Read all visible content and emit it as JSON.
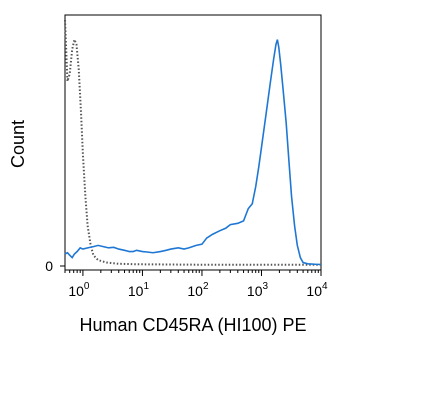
{
  "chart_data": {
    "type": "line",
    "xlabel": "Human CD45RA (HI100) PE",
    "ylabel": "Count",
    "x_scale": "log",
    "xlim": [
      0.5,
      10000
    ],
    "ylim": [
      0,
      100
    ],
    "x_ticks": [
      {
        "base": "10",
        "exp": "0",
        "value": 1
      },
      {
        "base": "10",
        "exp": "1",
        "value": 10
      },
      {
        "base": "10",
        "exp": "2",
        "value": 100
      },
      {
        "base": "10",
        "exp": "3",
        "value": 1000
      },
      {
        "base": "10",
        "exp": "4",
        "value": 10000
      }
    ],
    "y_ticks": [
      {
        "label": "0",
        "value": 0
      }
    ],
    "grid": false,
    "series": [
      {
        "style": "dotted",
        "color": "#555555",
        "points": [
          [
            0.5,
            100
          ],
          [
            0.55,
            75
          ],
          [
            0.6,
            78
          ],
          [
            0.66,
            88
          ],
          [
            0.72,
            92
          ],
          [
            0.78,
            90
          ],
          [
            0.85,
            80
          ],
          [
            0.93,
            62
          ],
          [
            1.0,
            45
          ],
          [
            1.1,
            28
          ],
          [
            1.2,
            16
          ],
          [
            1.35,
            8
          ],
          [
            1.5,
            4
          ],
          [
            1.8,
            2
          ],
          [
            2.5,
            1
          ],
          [
            4,
            0.5
          ],
          [
            8,
            0.3
          ],
          [
            30,
            0.2
          ],
          [
            100,
            0.1
          ],
          [
            10000,
            0.1
          ]
        ]
      },
      {
        "style": "solid",
        "color": "#1f77d4",
        "points": [
          [
            0.5,
            4.5
          ],
          [
            0.55,
            5
          ],
          [
            0.6,
            4
          ],
          [
            0.66,
            3
          ],
          [
            0.72,
            4.5
          ],
          [
            0.8,
            5.5
          ],
          [
            0.9,
            7
          ],
          [
            1.0,
            6.5
          ],
          [
            1.2,
            7
          ],
          [
            1.5,
            7.5
          ],
          [
            1.8,
            8
          ],
          [
            2.2,
            7.5
          ],
          [
            2.7,
            7
          ],
          [
            3.3,
            7.2
          ],
          [
            4,
            6.5
          ],
          [
            5,
            6
          ],
          [
            6,
            5.5
          ],
          [
            7,
            5.5
          ],
          [
            8,
            6
          ],
          [
            10,
            5.5
          ],
          [
            12,
            5.3
          ],
          [
            15,
            5
          ],
          [
            20,
            5.5
          ],
          [
            25,
            6
          ],
          [
            30,
            6.5
          ],
          [
            40,
            7
          ],
          [
            50,
            6.5
          ],
          [
            60,
            7
          ],
          [
            80,
            8
          ],
          [
            100,
            8.5
          ],
          [
            120,
            11
          ],
          [
            150,
            12.5
          ],
          [
            200,
            14
          ],
          [
            250,
            15
          ],
          [
            300,
            16.5
          ],
          [
            400,
            17
          ],
          [
            500,
            18
          ],
          [
            600,
            23
          ],
          [
            700,
            25
          ],
          [
            800,
            32
          ],
          [
            900,
            40
          ],
          [
            1000,
            48
          ],
          [
            1200,
            62
          ],
          [
            1400,
            74
          ],
          [
            1600,
            84
          ],
          [
            1750,
            90
          ],
          [
            1850,
            92
          ],
          [
            1950,
            89
          ],
          [
            2100,
            82
          ],
          [
            2300,
            72
          ],
          [
            2600,
            58
          ],
          [
            2900,
            42
          ],
          [
            3200,
            28
          ],
          [
            3600,
            16
          ],
          [
            4000,
            8
          ],
          [
            4500,
            3
          ],
          [
            5000,
            1
          ],
          [
            6000,
            0.5
          ],
          [
            8000,
            0.3
          ],
          [
            10000,
            0.2
          ]
        ]
      }
    ]
  }
}
